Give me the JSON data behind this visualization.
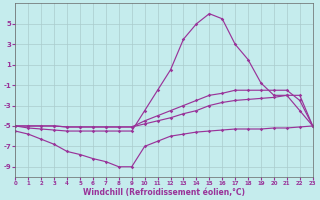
{
  "xlabel": "Windchill (Refroidissement éolien,°C)",
  "xlim": [
    0,
    23
  ],
  "ylim": [
    -10,
    7
  ],
  "xticks": [
    0,
    1,
    2,
    3,
    4,
    5,
    6,
    7,
    8,
    9,
    10,
    11,
    12,
    13,
    14,
    15,
    16,
    17,
    18,
    19,
    20,
    21,
    22,
    23
  ],
  "yticks": [
    -9,
    -7,
    -5,
    -3,
    -1,
    1,
    3,
    5
  ],
  "bg_color": "#c5eced",
  "grid_color": "#aacccc",
  "line_color": "#993399",
  "curve_big_peak": {
    "x": [
      0,
      1,
      2,
      3,
      4,
      5,
      6,
      7,
      8,
      9,
      10,
      11,
      12,
      13,
      14,
      15,
      16,
      17,
      18,
      19,
      20,
      21,
      22,
      23
    ],
    "y": [
      -5.0,
      -5.2,
      -5.3,
      -5.4,
      -5.5,
      -5.5,
      -5.5,
      -5.5,
      -5.5,
      -5.5,
      -3.5,
      -1.5,
      0.5,
      3.5,
      5.0,
      6.0,
      5.5,
      3.0,
      1.5,
      -0.8,
      -2.0,
      -2.0,
      -3.5,
      -5.0
    ]
  },
  "curve_straight1": {
    "x": [
      0,
      1,
      2,
      3,
      4,
      5,
      6,
      7,
      8,
      9,
      10,
      11,
      12,
      13,
      14,
      15,
      16,
      17,
      18,
      19,
      20,
      21,
      22,
      23
    ],
    "y": [
      -5.0,
      -5.0,
      -5.0,
      -5.0,
      -5.1,
      -5.1,
      -5.1,
      -5.1,
      -5.1,
      -5.1,
      -4.8,
      -4.5,
      -4.2,
      -3.8,
      -3.5,
      -3.0,
      -2.7,
      -2.5,
      -2.4,
      -2.3,
      -2.2,
      -2.0,
      -2.0,
      -5.0
    ]
  },
  "curve_straight2": {
    "x": [
      0,
      1,
      2,
      3,
      4,
      5,
      6,
      7,
      8,
      9,
      10,
      11,
      12,
      13,
      14,
      15,
      16,
      17,
      18,
      19,
      20,
      21,
      22,
      23
    ],
    "y": [
      -5.0,
      -5.0,
      -5.0,
      -5.0,
      -5.1,
      -5.1,
      -5.1,
      -5.1,
      -5.1,
      -5.1,
      -4.5,
      -4.0,
      -3.5,
      -3.0,
      -2.5,
      -2.0,
      -1.8,
      -1.5,
      -1.5,
      -1.5,
      -1.5,
      -1.5,
      -2.5,
      -5.0
    ]
  },
  "curve_dip": {
    "x": [
      0,
      1,
      2,
      3,
      4,
      5,
      6,
      7,
      8,
      9,
      10,
      11,
      12,
      13,
      14,
      15,
      16,
      17,
      18,
      19,
      20,
      21,
      22,
      23
    ],
    "y": [
      -5.5,
      -5.8,
      -6.3,
      -6.8,
      -7.5,
      -7.8,
      -8.2,
      -8.5,
      -9.0,
      -9.0,
      -7.0,
      -6.5,
      -6.0,
      -5.8,
      -5.6,
      -5.5,
      -5.4,
      -5.3,
      -5.3,
      -5.3,
      -5.2,
      -5.2,
      -5.1,
      -5.0
    ]
  }
}
